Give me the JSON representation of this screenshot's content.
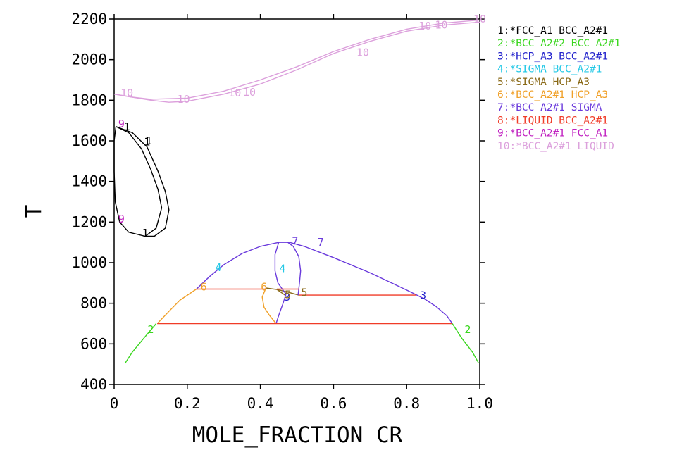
{
  "chart_data": {
    "type": "line",
    "title": "",
    "xlabel": "MOLE_FRACTION CR",
    "ylabel": "T",
    "xlim": [
      0,
      1
    ],
    "ylim": [
      400,
      2200
    ],
    "grid": false,
    "legend_position": "right",
    "x_ticks": [
      "0",
      "0.2",
      "0.4",
      "0.6",
      "0.8",
      "1.0"
    ],
    "y_ticks": [
      "400",
      "600",
      "800",
      "1000",
      "1200",
      "1400",
      "1600",
      "1800",
      "2000",
      "2200"
    ],
    "series": [
      {
        "id": "1",
        "name": "1:*FCC_A1 BCC_A2#1",
        "color": "#000000",
        "lines": [
          [
            [
              0.005,
              1670
            ],
            [
              0.04,
              1640
            ],
            [
              0.075,
              1560
            ],
            [
              0.1,
              1460
            ],
            [
              0.12,
              1360
            ],
            [
              0.13,
              1270
            ],
            [
              0.115,
              1170
            ],
            [
              0.085,
              1130
            ],
            [
              0.04,
              1150
            ],
            [
              0.015,
              1200
            ],
            [
              0.003,
              1300
            ],
            [
              0.0,
              1450
            ],
            [
              0.0,
              1600
            ],
            [
              0.005,
              1670
            ]
          ],
          [
            [
              0.005,
              1670
            ],
            [
              0.05,
              1640
            ],
            [
              0.09,
              1570
            ],
            [
              0.12,
              1450
            ],
            [
              0.14,
              1350
            ],
            [
              0.15,
              1260
            ],
            [
              0.14,
              1170
            ],
            [
              0.11,
              1130
            ],
            [
              0.085,
              1130
            ]
          ]
        ],
        "labels": [
          [
            0.035,
            1670
          ],
          [
            0.09,
            1595
          ],
          [
            0.095,
            1600
          ],
          [
            0.085,
            1145
          ]
        ]
      },
      {
        "id": "2",
        "name": "2:*BCC_A2#2 BCC_A2#1",
        "color": "#3ad61e",
        "lines": [
          [
            [
              0.03,
              505
            ],
            [
              0.05,
              560
            ],
            [
              0.08,
              625
            ],
            [
              0.115,
              700
            ]
          ],
          [
            [
              0.925,
              700
            ],
            [
              0.95,
              630
            ],
            [
              0.98,
              560
            ],
            [
              0.997,
              505
            ]
          ]
        ],
        "labels": [
          [
            0.1,
            670
          ],
          [
            0.967,
            670
          ]
        ]
      },
      {
        "id": "3",
        "name": "3:*HCP_A3 BCC_A2#1",
        "color": "#2222cc",
        "lines": [],
        "labels": [
          [
            0.845,
            838
          ],
          [
            0.473,
            830
          ]
        ]
      },
      {
        "id": "4",
        "name": "4:*SIGMA BCC_A2#1",
        "color": "#22c8e6",
        "lines": [],
        "labels": [
          [
            0.285,
            975
          ],
          [
            0.46,
            970
          ]
        ]
      },
      {
        "id": "5",
        "name": "5:*SIGMA HCP_A3",
        "color": "#8a6a18",
        "lines": [
          [
            [
              0.415,
              875
            ],
            [
              0.445,
              868
            ],
            [
              0.475,
              855
            ],
            [
              0.505,
              840
            ]
          ],
          [
            [
              0.445,
              868
            ],
            [
              0.458,
              852
            ],
            [
              0.47,
              837
            ]
          ]
        ],
        "labels": [
          [
            0.52,
            852
          ],
          [
            0.475,
            843
          ]
        ]
      },
      {
        "id": "6",
        "name": "6:*BCC_A2#1 HCP_A3",
        "color": "#f0a028",
        "lines": [
          [
            [
              0.118,
              700
            ],
            [
              0.15,
              760
            ],
            [
              0.18,
              815
            ],
            [
              0.225,
              870
            ]
          ],
          [
            [
              0.415,
              875
            ],
            [
              0.405,
              830
            ],
            [
              0.41,
              780
            ],
            [
              0.425,
              740
            ],
            [
              0.443,
              700
            ]
          ]
        ],
        "labels": [
          [
            0.245,
            880
          ],
          [
            0.41,
            880
          ]
        ]
      },
      {
        "id": "7",
        "name": "7:*BCC_A2#1 SIGMA",
        "color": "#6a3adc",
        "lines": [
          [
            [
              0.225,
              870
            ],
            [
              0.26,
              930
            ],
            [
              0.3,
              990
            ],
            [
              0.35,
              1045
            ],
            [
              0.4,
              1080
            ],
            [
              0.45,
              1100
            ],
            [
              0.48,
              1100
            ],
            [
              0.52,
              1080
            ],
            [
              0.6,
              1025
            ],
            [
              0.7,
              950
            ],
            [
              0.8,
              865
            ],
            [
              0.825,
              843
            ],
            [
              0.85,
              820
            ],
            [
              0.88,
              785
            ],
            [
              0.91,
              738
            ],
            [
              0.925,
              700
            ]
          ],
          [
            [
              0.475,
              1100
            ],
            [
              0.49,
              1080
            ],
            [
              0.505,
              1030
            ],
            [
              0.51,
              960
            ],
            [
              0.507,
              900
            ],
            [
              0.503,
              840
            ]
          ],
          [
            [
              0.45,
              1100
            ],
            [
              0.44,
              1040
            ],
            [
              0.44,
              960
            ],
            [
              0.448,
              900
            ],
            [
              0.46,
              870
            ],
            [
              0.47,
              845
            ]
          ],
          [
            [
              0.47,
              845
            ],
            [
              0.462,
              800
            ],
            [
              0.45,
              740
            ],
            [
              0.443,
              700
            ]
          ]
        ],
        "labels": [
          [
            0.495,
            1105
          ],
          [
            0.565,
            1100
          ]
        ]
      },
      {
        "id": "8",
        "name": "8:*LIQUID BCC_A2#1",
        "color": "#f03c28",
        "lines": [
          [
            [
              0.225,
              870
            ],
            [
              0.415,
              870
            ]
          ],
          [
            [
              0.445,
              870
            ],
            [
              0.505,
              870
            ]
          ],
          [
            [
              0.505,
              840
            ],
            [
              0.825,
              840
            ]
          ],
          [
            [
              0.118,
              700
            ],
            [
              0.925,
              700
            ]
          ]
        ],
        "labels": []
      },
      {
        "id": "9",
        "name": "9:*BCC_A2#1 FCC_A1",
        "color": "#c020c0",
        "lines": [],
        "labels": [
          [
            0.02,
            1683
          ],
          [
            0.02,
            1215
          ]
        ]
      },
      {
        "id": "10",
        "name": "10:*BCC_A2#1 LIQUID",
        "color": "#dca0dc",
        "lines": [
          [
            [
              0.0,
              1830
            ],
            [
              0.05,
              1815
            ],
            [
              0.1,
              1800
            ],
            [
              0.15,
              1790
            ],
            [
              0.2,
              1795
            ],
            [
              0.3,
              1830
            ],
            [
              0.4,
              1880
            ],
            [
              0.5,
              1950
            ],
            [
              0.6,
              2030
            ],
            [
              0.7,
              2090
            ],
            [
              0.8,
              2140
            ],
            [
              0.9,
              2170
            ],
            [
              1.0,
              2185
            ]
          ],
          [
            [
              0.0,
              1830
            ],
            [
              0.05,
              1815
            ],
            [
              0.1,
              1805
            ],
            [
              0.2,
              1810
            ],
            [
              0.3,
              1845
            ],
            [
              0.4,
              1900
            ],
            [
              0.5,
              1965
            ],
            [
              0.6,
              2040
            ],
            [
              0.7,
              2100
            ],
            [
              0.8,
              2150
            ],
            [
              0.9,
              2180
            ],
            [
              1.0,
              2195
            ]
          ]
        ],
        "labels": [
          [
            0.035,
            1835
          ],
          [
            0.19,
            1805
          ],
          [
            0.33,
            1835
          ],
          [
            0.37,
            1840
          ],
          [
            0.68,
            2035
          ],
          [
            0.85,
            2165
          ],
          [
            0.895,
            2170
          ],
          [
            1.0,
            2200
          ]
        ]
      }
    ]
  }
}
